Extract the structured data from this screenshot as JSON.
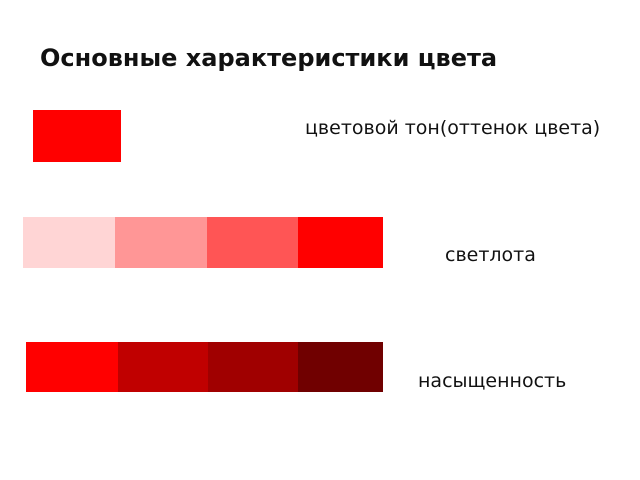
{
  "title": "Основные характеристики цвета",
  "items": [
    {
      "label": "цветовой тон(оттенок цвета)"
    },
    {
      "label": "светлота"
    },
    {
      "label": "насыщенность"
    }
  ]
}
